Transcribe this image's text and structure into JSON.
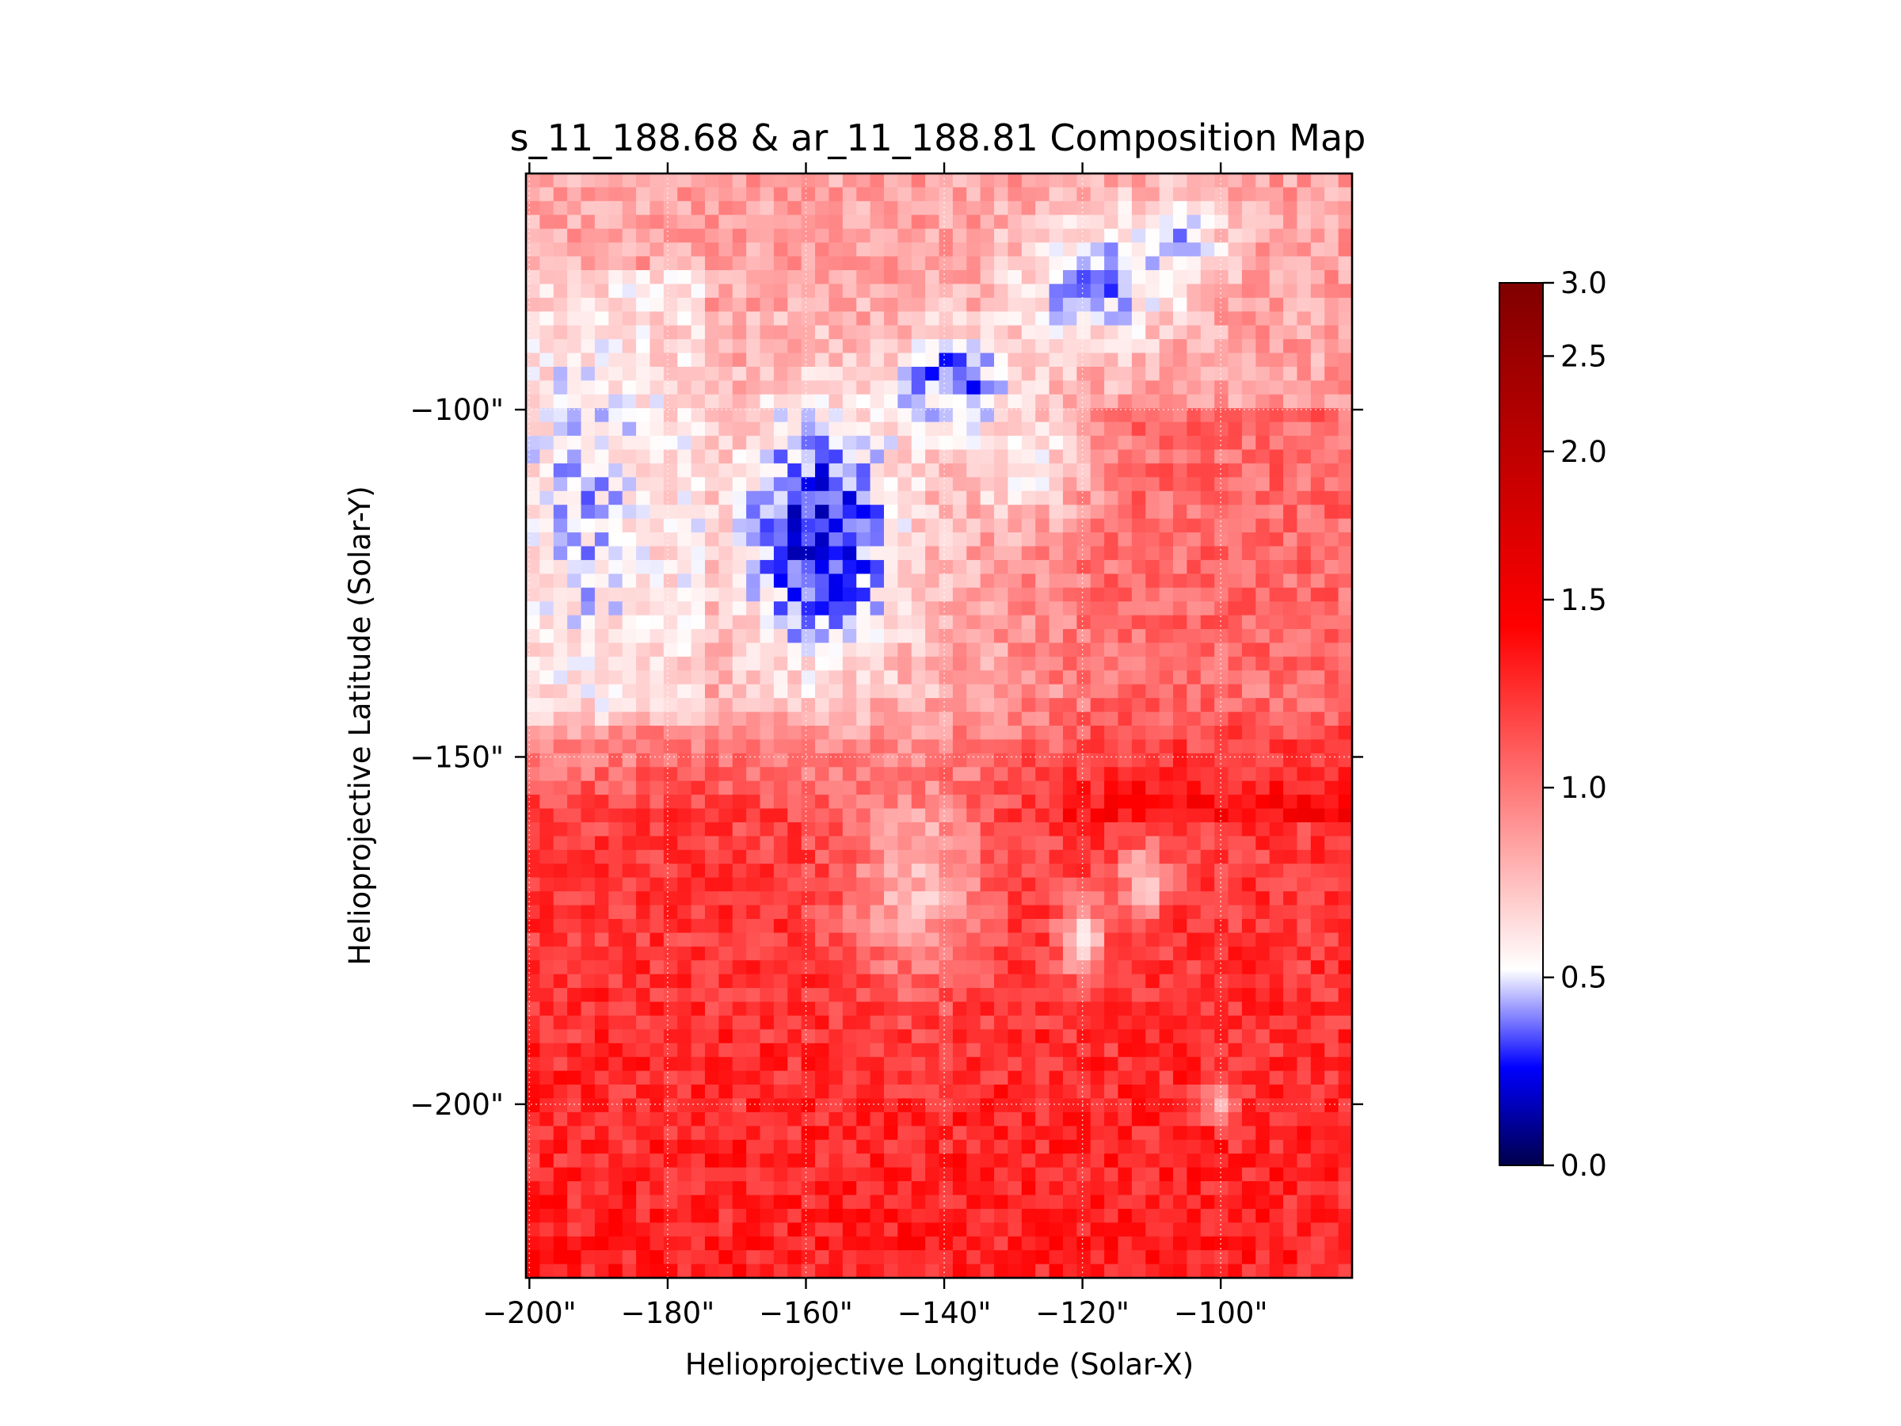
{
  "chart_data": {
    "type": "heatmap",
    "title": "s_11_188.68 & ar_11_188.81 Composition Map",
    "xlabel": "Helioprojective Longitude (Solar-X)",
    "ylabel": "Helioprojective Latitude (Solar-Y)",
    "x_unit": "arcsec",
    "y_unit": "arcsec",
    "xlim": [
      -200.5,
      -81.0
    ],
    "ylim": [
      -225.0,
      -66.0
    ],
    "x_ticks": [
      {
        "value": -200,
        "label": "−200\""
      },
      {
        "value": -180,
        "label": "−180\""
      },
      {
        "value": -160,
        "label": "−160\""
      },
      {
        "value": -140,
        "label": "−140\""
      },
      {
        "value": -120,
        "label": "−120\""
      },
      {
        "value": -100,
        "label": "−100\""
      }
    ],
    "y_ticks": [
      {
        "value": -100,
        "label": "−100\""
      },
      {
        "value": -150,
        "label": "−150\""
      },
      {
        "value": -200,
        "label": "−200\""
      }
    ],
    "grid": true,
    "grid_style": "dotted",
    "grid_color": "#ffffff",
    "colormap": "seismic",
    "colormap_center": 0.67,
    "colorbar": {
      "range": [
        0.0,
        3.0
      ],
      "ticks": [
        {
          "value": 0.0,
          "label": "0.0"
        },
        {
          "value": 0.5,
          "label": "0.5"
        },
        {
          "value": 1.0,
          "label": "1.0"
        },
        {
          "value": 1.5,
          "label": "1.5"
        },
        {
          "value": 2.0,
          "label": "2.0"
        },
        {
          "value": 2.5,
          "label": "2.5"
        },
        {
          "value": 3.0,
          "label": "3.0"
        }
      ],
      "position": "right"
    },
    "grid_shape": {
      "cols": 60,
      "rows": 80
    },
    "value_field": {
      "description_values": "approximate FIP-bias composition values",
      "base_north_west": 1.1,
      "base_upper_east": 1.05,
      "base_south": 1.55,
      "low_regions": [
        {
          "x": -158,
          "y": -118,
          "rx": 14,
          "ry": 22,
          "value": 0.28
        },
        {
          "x": -138,
          "y": -96,
          "rx": 10,
          "ry": 8,
          "value": 0.38
        },
        {
          "x": -118,
          "y": -82,
          "rx": 13,
          "ry": 10,
          "value": 0.5
        },
        {
          "x": -107,
          "y": -76,
          "rx": 8,
          "ry": 7,
          "value": 0.6
        },
        {
          "x": -192,
          "y": -113,
          "rx": 9,
          "ry": 26,
          "value": 0.62
        },
        {
          "x": -128,
          "y": -108,
          "rx": 10,
          "ry": 9,
          "value": 0.72
        }
      ],
      "mid_regions": [
        {
          "x": -144,
          "y": -168,
          "rx": 12,
          "ry": 18,
          "value": 0.88
        },
        {
          "x": -120,
          "y": -176,
          "rx": 4,
          "ry": 7,
          "value": 0.72
        },
        {
          "x": -111,
          "y": -168,
          "rx": 4,
          "ry": 6,
          "value": 0.7
        },
        {
          "x": -100,
          "y": -200,
          "rx": 3,
          "ry": 3,
          "value": 0.95
        }
      ]
    }
  },
  "colors": {
    "low": "#00004c",
    "mid_low": "#0000ff",
    "center": "#ffffff",
    "mid_high": "#ff0000",
    "high": "#800000"
  }
}
